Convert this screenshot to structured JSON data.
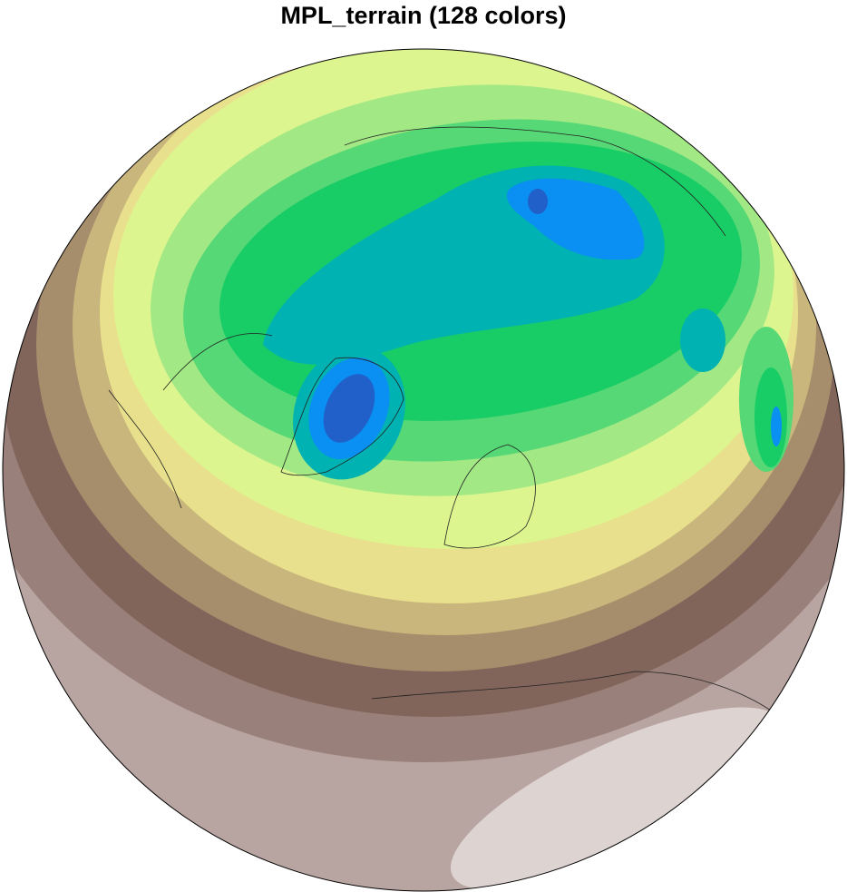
{
  "title": "MPL_terrain (128 colors)",
  "map": {
    "projection": "orthographic",
    "colormap": "MPL_terrain",
    "fill_type": "filled contours",
    "coastlines": true,
    "band_colors": [
      "#ddd3d1",
      "#b8a4a0",
      "#9a807a",
      "#82655a",
      "#a68d6c",
      "#c9b67c",
      "#e8e08c",
      "#ddf58f",
      "#a2e884",
      "#55d875",
      "#18cd66",
      "#00b2b2",
      "#0a8ff2",
      "#2060c8"
    ]
  }
}
